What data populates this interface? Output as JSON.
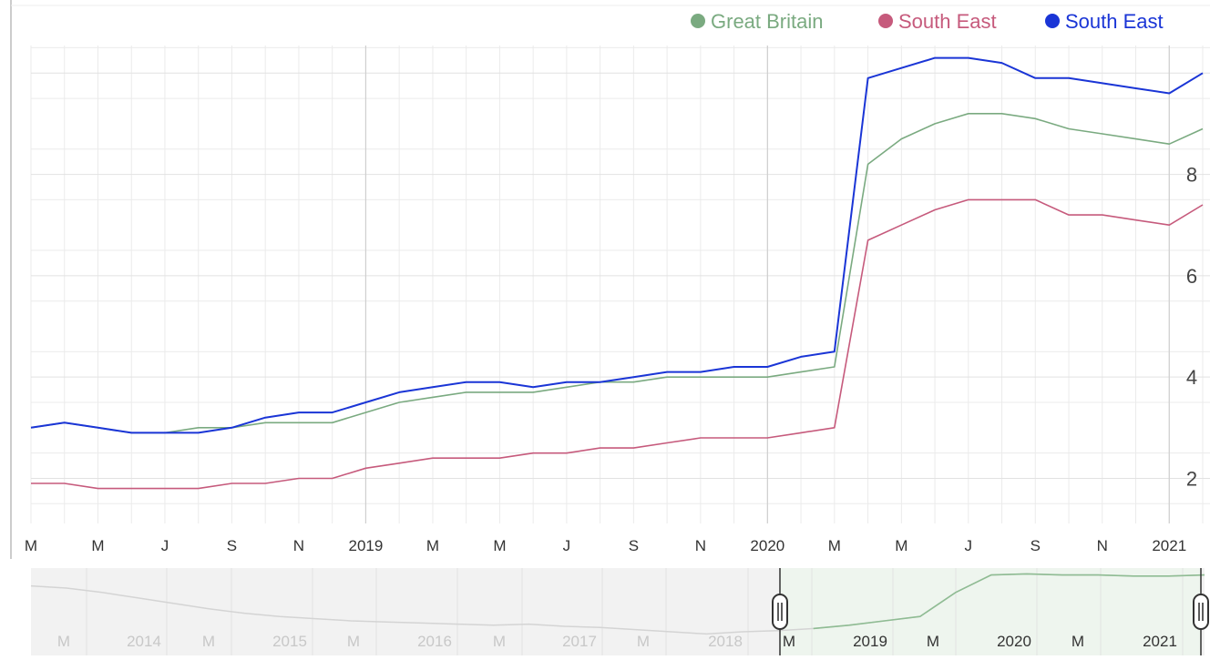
{
  "chart_data": {
    "type": "line",
    "title": "",
    "legend": {
      "placement": "top-right",
      "entries": [
        {
          "label": "Great Britain",
          "color": "#7aaa80"
        },
        {
          "label": "South East",
          "color": "#c65a7c"
        },
        {
          "label": "South East",
          "color": "#1a35d6"
        }
      ]
    },
    "x_ticks": [
      "M",
      "M",
      "J",
      "S",
      "N",
      "2019",
      "M",
      "M",
      "J",
      "S",
      "N",
      "2020",
      "M",
      "M",
      "J",
      "S",
      "N",
      "2021"
    ],
    "y_ticks": [
      "2",
      "4",
      "6",
      "8"
    ],
    "ylim": [
      1.2,
      10.4
    ],
    "y_position": "right",
    "grid": true,
    "series": [
      {
        "name": "Great Britain",
        "color": "#7aaa80",
        "values": [
          3.0,
          3.1,
          3.0,
          2.9,
          2.9,
          3.0,
          3.0,
          3.1,
          3.1,
          3.1,
          3.3,
          3.5,
          3.6,
          3.7,
          3.7,
          3.7,
          3.8,
          3.9,
          3.9,
          4.0,
          4.0,
          4.0,
          4.0,
          4.1,
          4.2,
          8.2,
          8.7,
          9.0,
          9.2,
          9.2,
          9.1,
          8.9,
          8.8,
          8.7,
          8.6,
          8.9
        ]
      },
      {
        "name": "South East",
        "color": "#c65a7c",
        "values": [
          1.9,
          1.9,
          1.8,
          1.8,
          1.8,
          1.8,
          1.9,
          1.9,
          2.0,
          2.0,
          2.2,
          2.3,
          2.4,
          2.4,
          2.4,
          2.5,
          2.5,
          2.6,
          2.6,
          2.7,
          2.8,
          2.8,
          2.8,
          2.9,
          3.0,
          6.7,
          7.0,
          7.3,
          7.5,
          7.5,
          7.5,
          7.2,
          7.2,
          7.1,
          7.0,
          7.4
        ]
      },
      {
        "name": "South East",
        "color": "#1a35d6",
        "values": [
          3.0,
          3.1,
          3.0,
          2.9,
          2.9,
          2.9,
          3.0,
          3.2,
          3.3,
          3.3,
          3.5,
          3.7,
          3.8,
          3.9,
          3.9,
          3.8,
          3.9,
          3.9,
          4.0,
          4.1,
          4.1,
          4.2,
          4.2,
          4.4,
          4.5,
          9.9,
          10.1,
          10.3,
          10.3,
          10.2,
          9.9,
          9.9,
          9.8,
          9.7,
          9.6,
          10.0
        ]
      }
    ],
    "navigator": {
      "labels": [
        "M",
        "2014",
        "M",
        "2015",
        "M",
        "2016",
        "M",
        "2017",
        "M",
        "2018",
        "M",
        "2019",
        "M",
        "2020",
        "M",
        "2021"
      ],
      "values": [
        8.2,
        8.0,
        7.6,
        7.1,
        6.6,
        6.1,
        5.7,
        5.4,
        5.2,
        5.0,
        4.9,
        4.8,
        4.7,
        4.6,
        4.7,
        4.5,
        4.4,
        4.2,
        4.0,
        3.8,
        4.0,
        4.1,
        4.3,
        4.6,
        5.0,
        5.4,
        7.6,
        9.2,
        9.3,
        9.2,
        9.2,
        9.1,
        9.1,
        9.2
      ],
      "selected_range": [
        "M 2018",
        "2021"
      ]
    }
  }
}
